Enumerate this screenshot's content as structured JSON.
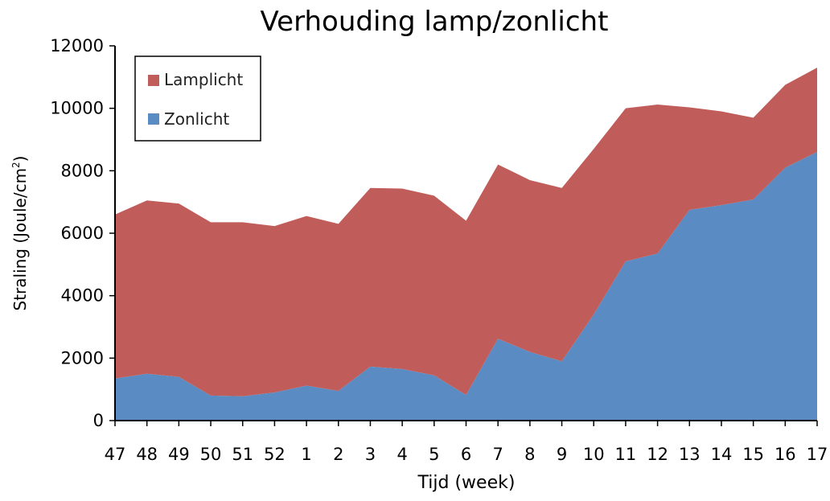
{
  "chart_data": {
    "type": "area",
    "stacked": true,
    "title": "Verhouding lamp/zonlicht",
    "xlabel": "Tijd (week)",
    "ylabel": "Straling (Joule/cm",
    "ylabel_superscript": "2",
    "ylabel_suffix": ")",
    "ylim": [
      0,
      12000
    ],
    "yticks": [
      "0",
      "2000",
      "4000",
      "6000",
      "8000",
      "10000",
      "12000"
    ],
    "categories": [
      "47",
      "48",
      "49",
      "50",
      "51",
      "52",
      "1",
      "2",
      "3",
      "4",
      "5",
      "6",
      "7",
      "8",
      "9",
      "10",
      "11",
      "12",
      "13",
      "14",
      "15",
      "16",
      "17"
    ],
    "series": [
      {
        "name": "Zonlicht",
        "color": "#5b8bc3",
        "values": [
          1350,
          1500,
          1400,
          800,
          780,
          900,
          1120,
          950,
          1730,
          1650,
          1450,
          820,
          2620,
          2200,
          1900,
          3400,
          5100,
          5350,
          6750,
          6900,
          7080,
          8100,
          8600
        ]
      },
      {
        "name": "Lamplicht",
        "color": "#c05d5b",
        "values": [
          5250,
          5550,
          5550,
          5550,
          5570,
          5330,
          5430,
          5350,
          5720,
          5780,
          5750,
          5580,
          5580,
          5500,
          5550,
          5300,
          4900,
          4770,
          3280,
          3000,
          2620,
          2650,
          2700
        ]
      }
    ],
    "legend": {
      "position": "top-left",
      "entries": [
        "Lamplicht",
        "Zonlicht"
      ]
    },
    "grid": false
  }
}
